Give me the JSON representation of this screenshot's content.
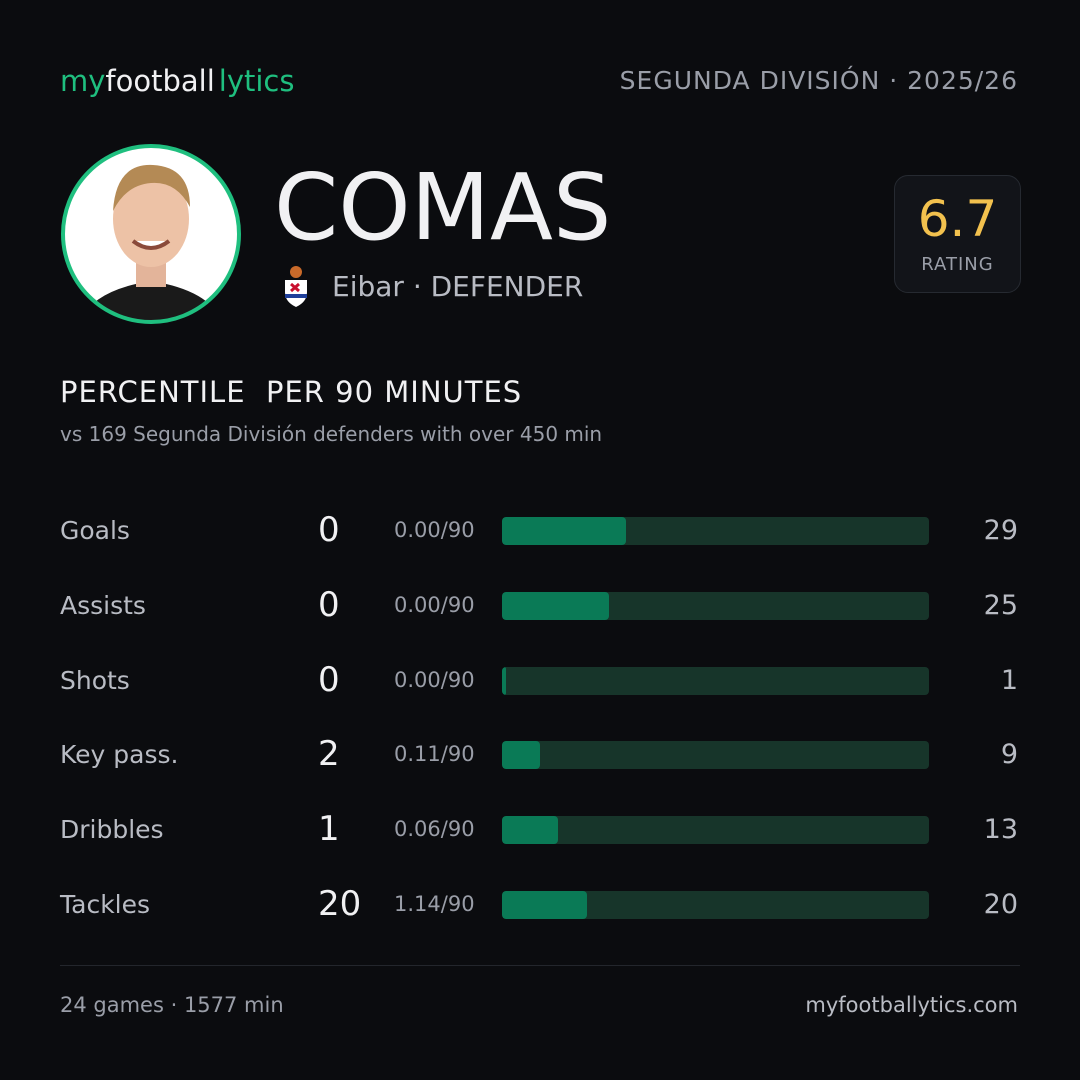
{
  "header": {
    "logo": {
      "part1": "my",
      "part2": "football",
      "part3": "lytics"
    },
    "competition": "SEGUNDA DIVISIÓN · 2025/26"
  },
  "player": {
    "name": "COMAS",
    "team_line": "Eibar · DEFENDER"
  },
  "rating": {
    "value": 6.7,
    "label": "RATING"
  },
  "section": {
    "title": "PERCENTILE  PER 90 MINUTES",
    "subtitle": "vs 169 Segunda División defenders with over 450 min"
  },
  "stats": [
    {
      "label": "Goals",
      "total": 0,
      "per90": "0.00/90",
      "percentile": 29
    },
    {
      "label": "Assists",
      "total": 0,
      "per90": "0.00/90",
      "percentile": 25
    },
    {
      "label": "Shots",
      "total": 0,
      "per90": "0.00/90",
      "percentile": 1
    },
    {
      "label": "Key pass.",
      "total": 2,
      "per90": "0.11/90",
      "percentile": 9
    },
    {
      "label": "Dribbles",
      "total": 1,
      "per90": "0.06/90",
      "percentile": 13
    },
    {
      "label": "Tackles",
      "total": 20,
      "per90": "1.14/90",
      "percentile": 20
    }
  ],
  "footer": {
    "left": "24 games · 1577 min",
    "right": "myfootballytics.com"
  }
}
